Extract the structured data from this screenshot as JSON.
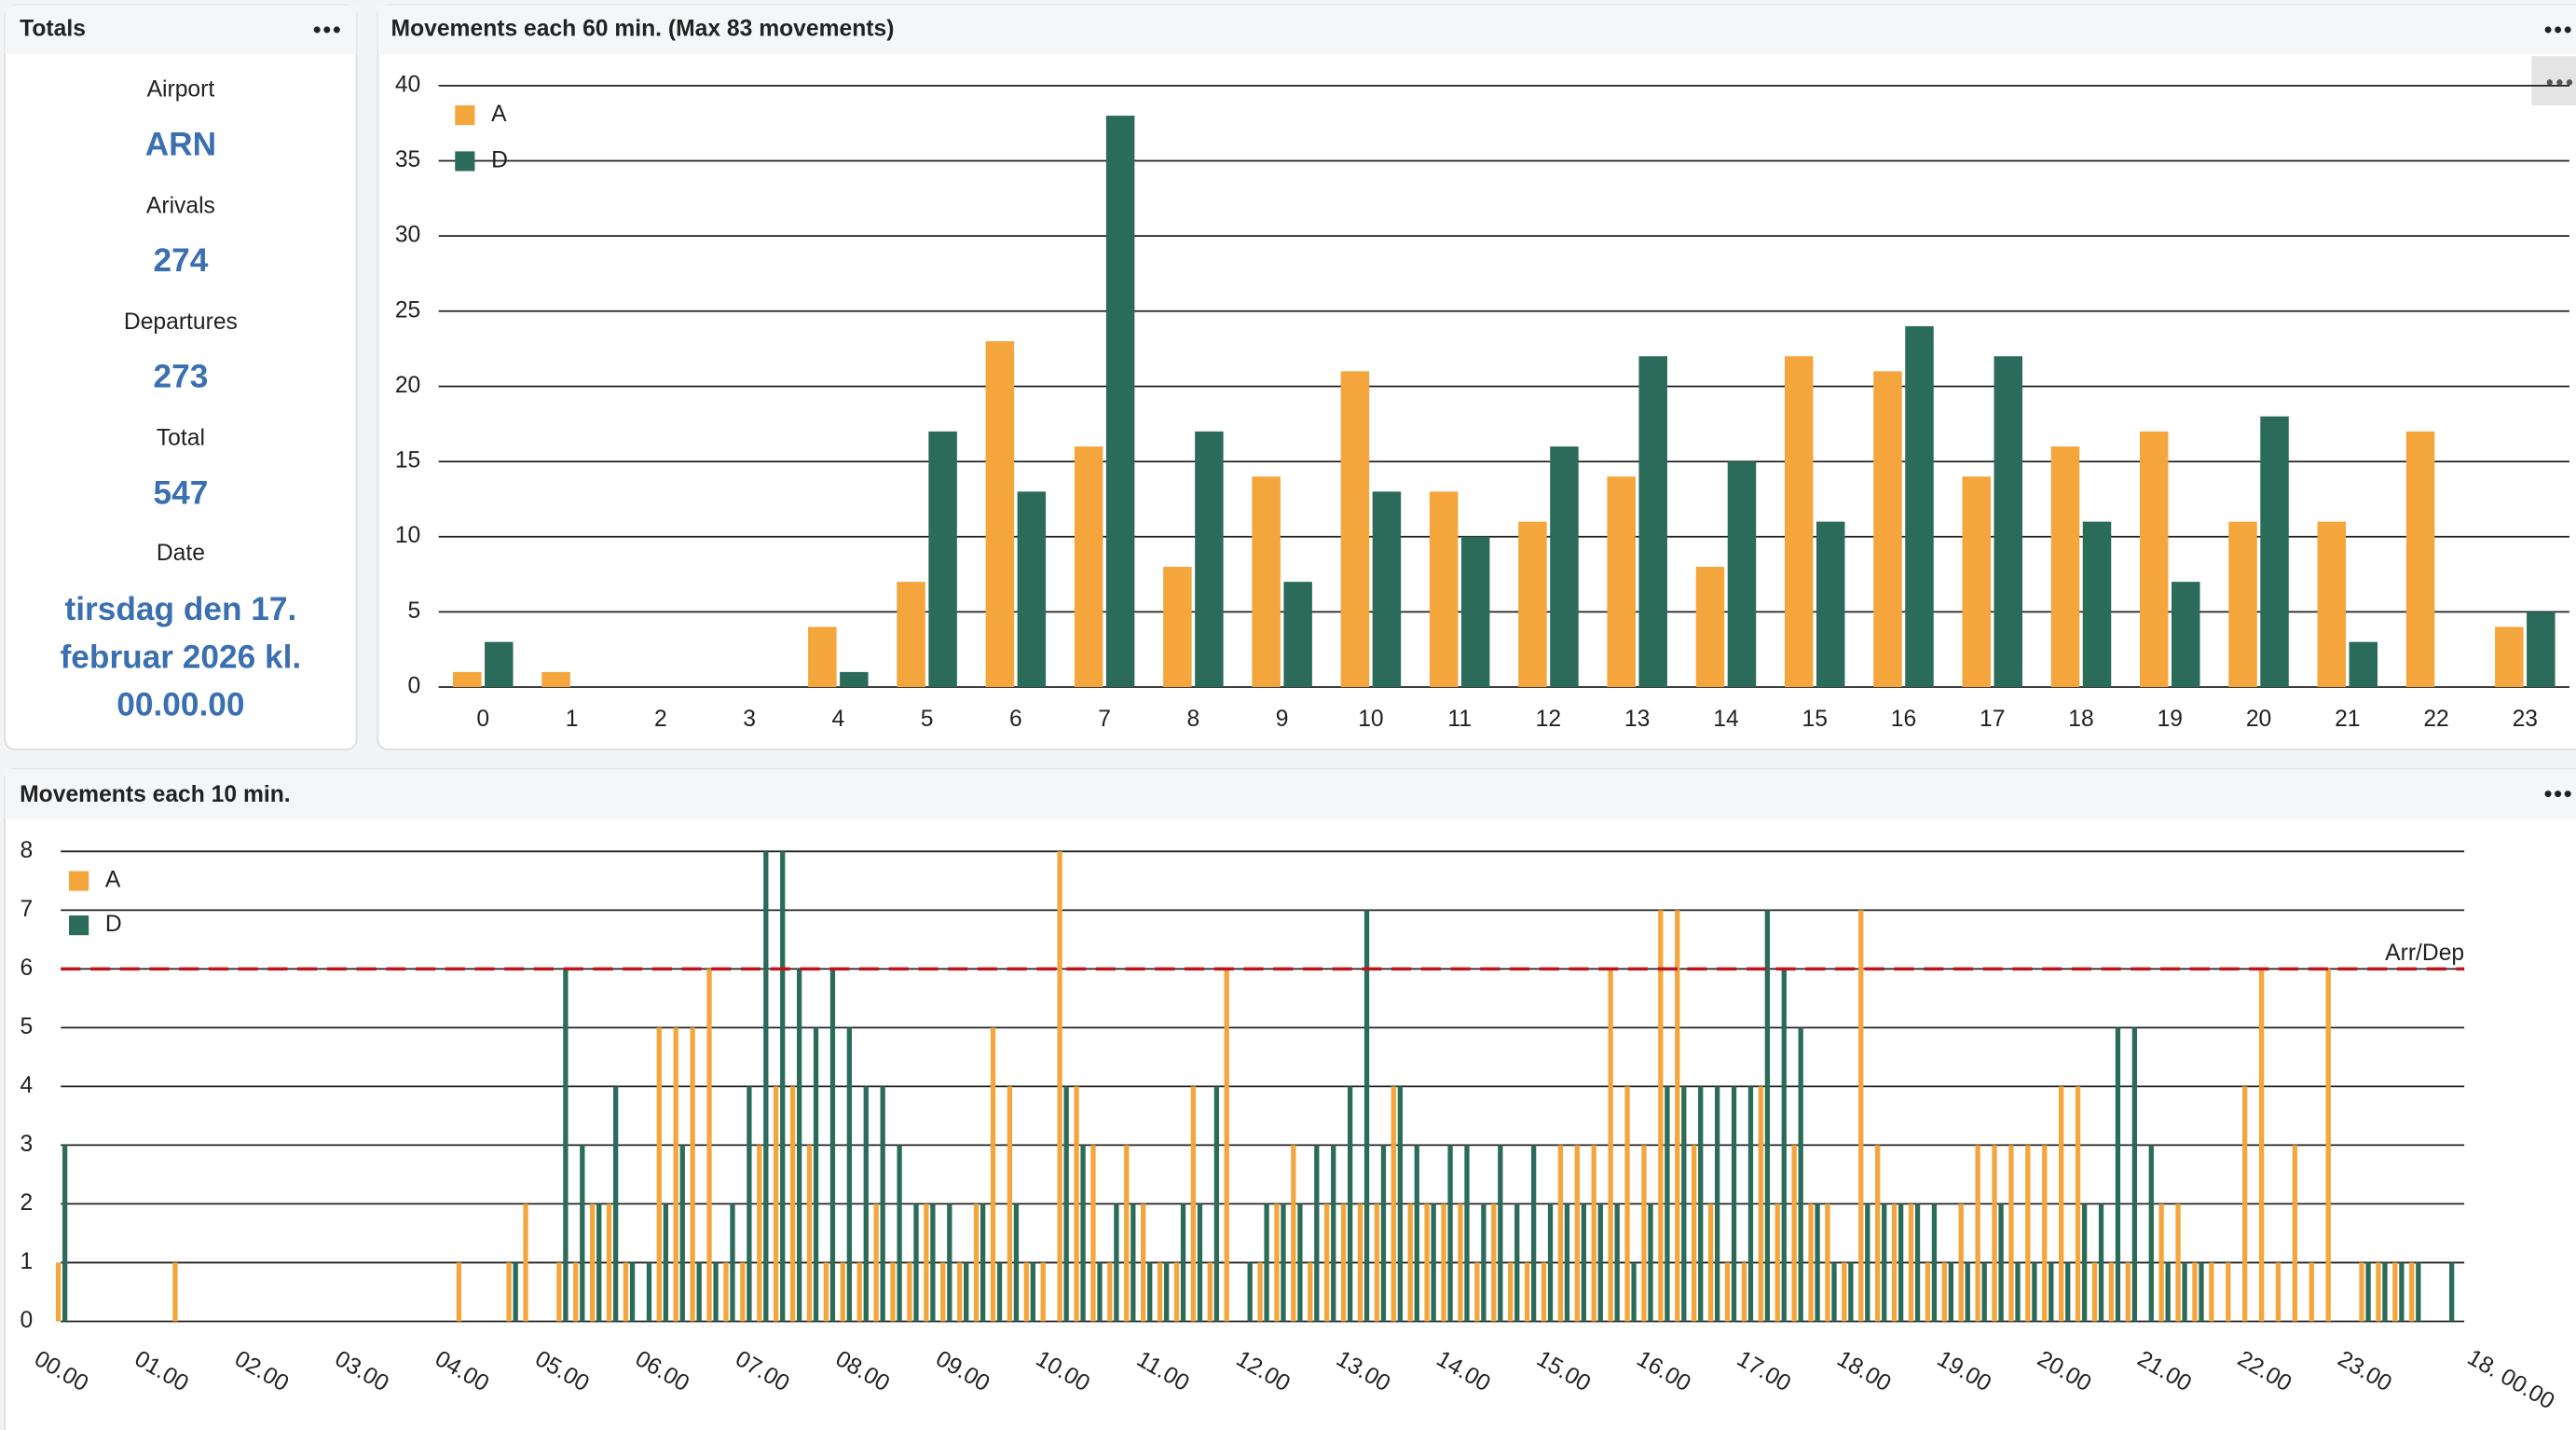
{
  "totals": {
    "title": "Totals",
    "items": [
      {
        "label": "Airport",
        "value": "ARN"
      },
      {
        "label": "Arivals",
        "value": "274"
      },
      {
        "label": "Departures",
        "value": "273"
      },
      {
        "label": "Total",
        "value": "547"
      }
    ],
    "date_label": "Date",
    "date_lines": [
      "tirsdag den 17.",
      "februar 2026 kl.",
      "00.00.00"
    ]
  },
  "chart_data": [
    {
      "type": "bar",
      "title": "Movements each 60 min. (Max 83 movements)",
      "categories": [
        "0",
        "1",
        "2",
        "3",
        "4",
        "5",
        "6",
        "7",
        "8",
        "9",
        "10",
        "11",
        "12",
        "13",
        "14",
        "15",
        "16",
        "17",
        "18",
        "19",
        "20",
        "21",
        "22",
        "23"
      ],
      "series": [
        {
          "name": "A",
          "color": "#f4a53b",
          "values": [
            1,
            1,
            0,
            0,
            4,
            7,
            23,
            16,
            8,
            14,
            21,
            13,
            11,
            14,
            8,
            22,
            21,
            14,
            16,
            17,
            11,
            11,
            17,
            4
          ]
        },
        {
          "name": "D",
          "color": "#2a6b5a",
          "values": [
            3,
            0,
            0,
            0,
            1,
            17,
            13,
            38,
            17,
            7,
            13,
            10,
            16,
            22,
            15,
            11,
            24,
            22,
            11,
            7,
            18,
            3,
            0,
            5
          ]
        }
      ],
      "ylim": [
        0,
        40
      ],
      "yticks": [
        0,
        5,
        10,
        15,
        20,
        25,
        30,
        35,
        40
      ],
      "grid": true,
      "legend": "top-left"
    },
    {
      "type": "bar",
      "title": "Movements each 10 min.",
      "categories": [
        "00.00",
        null,
        null,
        null,
        null,
        null,
        "01.00",
        null,
        null,
        null,
        null,
        null,
        "02.00",
        null,
        null,
        null,
        null,
        null,
        "03.00",
        null,
        null,
        null,
        null,
        null,
        "04.00",
        null,
        null,
        null,
        null,
        null,
        "05.00",
        null,
        null,
        null,
        null,
        null,
        "06.00",
        null,
        null,
        null,
        null,
        null,
        "07.00",
        null,
        null,
        null,
        null,
        null,
        "08.00",
        null,
        null,
        null,
        null,
        null,
        "09.00",
        null,
        null,
        null,
        null,
        null,
        "10.00",
        null,
        null,
        null,
        null,
        null,
        "11.00",
        null,
        null,
        null,
        null,
        null,
        "12.00",
        null,
        null,
        null,
        null,
        null,
        "13.00",
        null,
        null,
        null,
        null,
        null,
        "14.00",
        null,
        null,
        null,
        null,
        null,
        "15.00",
        null,
        null,
        null,
        null,
        null,
        "16.00",
        null,
        null,
        null,
        null,
        null,
        "17.00",
        null,
        null,
        null,
        null,
        null,
        "18.00",
        null,
        null,
        null,
        null,
        null,
        "19.00",
        null,
        null,
        null,
        null,
        null,
        "20.00",
        null,
        null,
        null,
        null,
        null,
        "21.00",
        null,
        null,
        null,
        null,
        null,
        "22.00",
        null,
        null,
        null,
        null,
        null,
        "23.00",
        null,
        null,
        null,
        null,
        null
      ],
      "end_label": "18. 00.00",
      "series": [
        {
          "name": "A",
          "color": "#f4a53b",
          "values": [
            1,
            0,
            0,
            0,
            0,
            0,
            0,
            1,
            0,
            0,
            0,
            0,
            0,
            0,
            0,
            0,
            0,
            0,
            0,
            0,
            0,
            0,
            0,
            0,
            1,
            0,
            0,
            1,
            2,
            0,
            1,
            1,
            2,
            2,
            1,
            0,
            5,
            5,
            5,
            6,
            1,
            1,
            3,
            4,
            4,
            3,
            1,
            1,
            1,
            2,
            1,
            1,
            2,
            1,
            1,
            2,
            5,
            4,
            1,
            1,
            8,
            4,
            3,
            1,
            3,
            2,
            1,
            1,
            4,
            1,
            6,
            0,
            1,
            2,
            3,
            1,
            2,
            2,
            2,
            2,
            4,
            2,
            2,
            2,
            2,
            1,
            2,
            1,
            1,
            1,
            3,
            3,
            3,
            6,
            4,
            3,
            7,
            7,
            3,
            2,
            1,
            1,
            4,
            2,
            3,
            2,
            2,
            1,
            7,
            3,
            2,
            2,
            1,
            1,
            2,
            3,
            3,
            3,
            3,
            3,
            4,
            4,
            1,
            1,
            1,
            0,
            2,
            2,
            1,
            1,
            1,
            4,
            6,
            1,
            3,
            1,
            6,
            0,
            1,
            1,
            1,
            1,
            0,
            0
          ]
        },
        {
          "name": "D",
          "color": "#2a6b5a",
          "values": [
            3,
            0,
            0,
            0,
            0,
            0,
            0,
            0,
            0,
            0,
            0,
            0,
            0,
            0,
            0,
            0,
            0,
            0,
            0,
            0,
            0,
            0,
            0,
            0,
            0,
            0,
            0,
            1,
            0,
            0,
            6,
            3,
            2,
            4,
            1,
            1,
            2,
            3,
            1,
            1,
            2,
            4,
            8,
            8,
            6,
            5,
            6,
            5,
            4,
            4,
            3,
            2,
            2,
            2,
            1,
            2,
            1,
            2,
            1,
            0,
            4,
            3,
            1,
            2,
            2,
            1,
            1,
            2,
            2,
            4,
            0,
            1,
            2,
            2,
            2,
            3,
            3,
            4,
            7,
            3,
            4,
            3,
            2,
            3,
            3,
            2,
            3,
            2,
            3,
            2,
            2,
            2,
            2,
            2,
            1,
            2,
            4,
            4,
            4,
            4,
            4,
            4,
            7,
            6,
            5,
            2,
            1,
            1,
            2,
            2,
            2,
            2,
            2,
            1,
            1,
            1,
            2,
            1,
            1,
            1,
            1,
            2,
            2,
            5,
            5,
            3,
            1,
            1,
            1,
            0,
            0,
            0,
            0,
            0,
            0,
            0,
            0,
            0,
            1,
            1,
            1,
            1,
            0,
            1
          ]
        }
      ],
      "threshold": {
        "value": 6,
        "label": "Arr/Dep",
        "color": "#c0141c"
      },
      "ylim": [
        0,
        8
      ],
      "yticks": [
        0,
        1,
        2,
        3,
        4,
        5,
        6,
        7,
        8
      ],
      "grid": true,
      "legend": "top-left"
    }
  ]
}
